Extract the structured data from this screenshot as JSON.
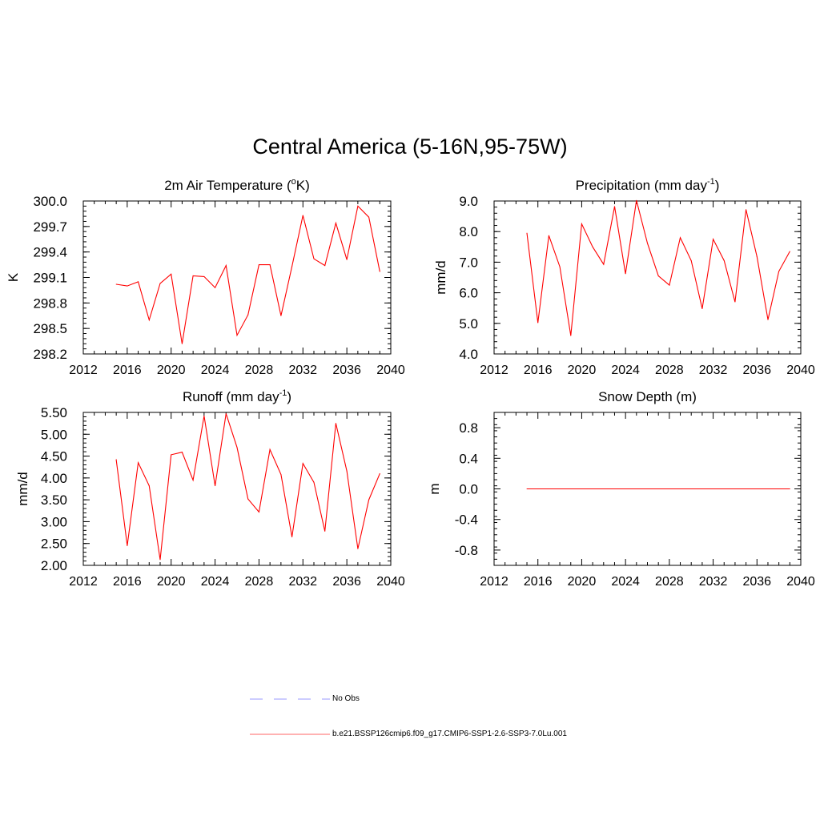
{
  "figure": {
    "title": "Central America (5-16N,95-75W)"
  },
  "legend": {
    "entries": [
      {
        "label": "No Obs",
        "color": "#9999ff",
        "style": "dashed"
      },
      {
        "label": "b.e21.BSSP126cmip6.f09_g17.CMIP6-SSP1-2.6-SSP3-7.0Lu.001",
        "color": "#ff6666",
        "style": "solid"
      }
    ]
  },
  "series_color": "#ff0000",
  "chart_data": [
    {
      "type": "line",
      "title": "2m Air Temperature (°K)",
      "title_main": "2m Air Temperature (",
      "title_sup": "o",
      "title_end": "K)",
      "ylabel": "K",
      "xlabel": "",
      "xlim": [
        2012,
        2040
      ],
      "ylim": [
        298.2,
        300.0
      ],
      "xticks": [
        2012,
        2016,
        2020,
        2024,
        2028,
        2032,
        2036,
        2040
      ],
      "yticks": [
        "298.2",
        "298.5",
        "298.8",
        "299.1",
        "299.4",
        "299.7",
        "300.0"
      ],
      "x": [
        2015,
        2016,
        2017,
        2018,
        2019,
        2020,
        2021,
        2022,
        2023,
        2024,
        2025,
        2026,
        2027,
        2028,
        2029,
        2030,
        2031,
        2032,
        2033,
        2034,
        2035,
        2036,
        2037,
        2038,
        2039
      ],
      "values": [
        299.02,
        299.0,
        299.05,
        298.6,
        299.03,
        299.14,
        298.32,
        299.12,
        299.11,
        298.98,
        299.24,
        298.42,
        298.66,
        299.25,
        299.25,
        298.65,
        299.23,
        299.83,
        299.32,
        299.24,
        299.74,
        299.31,
        299.94,
        299.81,
        299.17
      ]
    },
    {
      "type": "line",
      "title": "Precipitation (mm day-1)",
      "title_main": "Precipitation (mm day",
      "title_sup": "-1",
      "title_end": ")",
      "ylabel": "mm/d",
      "xlabel": "",
      "xlim": [
        2012,
        2040
      ],
      "ylim": [
        4.0,
        9.0
      ],
      "xticks": [
        2012,
        2016,
        2020,
        2024,
        2028,
        2032,
        2036,
        2040
      ],
      "yticks": [
        "4.0",
        "5.0",
        "6.0",
        "7.0",
        "8.0",
        "9.0"
      ],
      "x": [
        2015,
        2016,
        2017,
        2018,
        2019,
        2020,
        2021,
        2022,
        2023,
        2024,
        2025,
        2026,
        2027,
        2028,
        2029,
        2030,
        2031,
        2032,
        2033,
        2034,
        2035,
        2036,
        2037,
        2038,
        2039
      ],
      "values": [
        7.95,
        5.02,
        7.87,
        6.85,
        4.6,
        8.25,
        7.5,
        6.93,
        8.82,
        6.62,
        9.02,
        7.62,
        6.55,
        6.25,
        7.8,
        7.05,
        5.48,
        7.75,
        7.05,
        5.7,
        8.72,
        7.18,
        5.12,
        6.7,
        7.35
      ]
    },
    {
      "type": "line",
      "title": "Runoff (mm day-1)",
      "title_main": "Runoff (mm day",
      "title_sup": "-1",
      "title_end": ")",
      "ylabel": "mm/d",
      "xlabel": "",
      "xlim": [
        2012,
        2040
      ],
      "ylim": [
        2.0,
        5.5
      ],
      "xticks": [
        2012,
        2016,
        2020,
        2024,
        2028,
        2032,
        2036,
        2040
      ],
      "yticks": [
        "2.00",
        "2.50",
        "3.00",
        "3.50",
        "4.00",
        "4.50",
        "5.00",
        "5.50"
      ],
      "x": [
        2015,
        2016,
        2017,
        2018,
        2019,
        2020,
        2021,
        2022,
        2023,
        2024,
        2025,
        2026,
        2027,
        2028,
        2029,
        2030,
        2031,
        2032,
        2033,
        2034,
        2035,
        2036,
        2037,
        2038,
        2039
      ],
      "values": [
        4.42,
        2.45,
        4.35,
        3.82,
        2.13,
        4.53,
        4.59,
        3.95,
        5.42,
        3.82,
        5.47,
        4.7,
        3.52,
        3.22,
        4.65,
        4.08,
        2.65,
        4.33,
        3.9,
        2.78,
        5.25,
        4.16,
        2.38,
        3.5,
        4.1
      ]
    },
    {
      "type": "line",
      "title": "Snow Depth (m)",
      "title_main": "Snow Depth (m)",
      "title_sup": "",
      "title_end": "",
      "ylabel": "m",
      "xlabel": "",
      "xlim": [
        2012,
        2040
      ],
      "ylim": [
        -1.0,
        1.0
      ],
      "xticks": [
        2012,
        2016,
        2020,
        2024,
        2028,
        2032,
        2036,
        2040
      ],
      "yticks": [
        "-0.8",
        "-0.4",
        "0.0",
        "0.4",
        "0.8"
      ],
      "ytick_values": [
        -0.8,
        -0.4,
        0.0,
        0.4,
        0.8
      ],
      "x": [
        2015,
        2016,
        2017,
        2018,
        2019,
        2020,
        2021,
        2022,
        2023,
        2024,
        2025,
        2026,
        2027,
        2028,
        2029,
        2030,
        2031,
        2032,
        2033,
        2034,
        2035,
        2036,
        2037,
        2038,
        2039
      ],
      "values": [
        0,
        0,
        0,
        0,
        0,
        0,
        0,
        0,
        0,
        0,
        0,
        0,
        0,
        0,
        0,
        0,
        0,
        0,
        0,
        0,
        0,
        0,
        0,
        0,
        0
      ]
    }
  ]
}
